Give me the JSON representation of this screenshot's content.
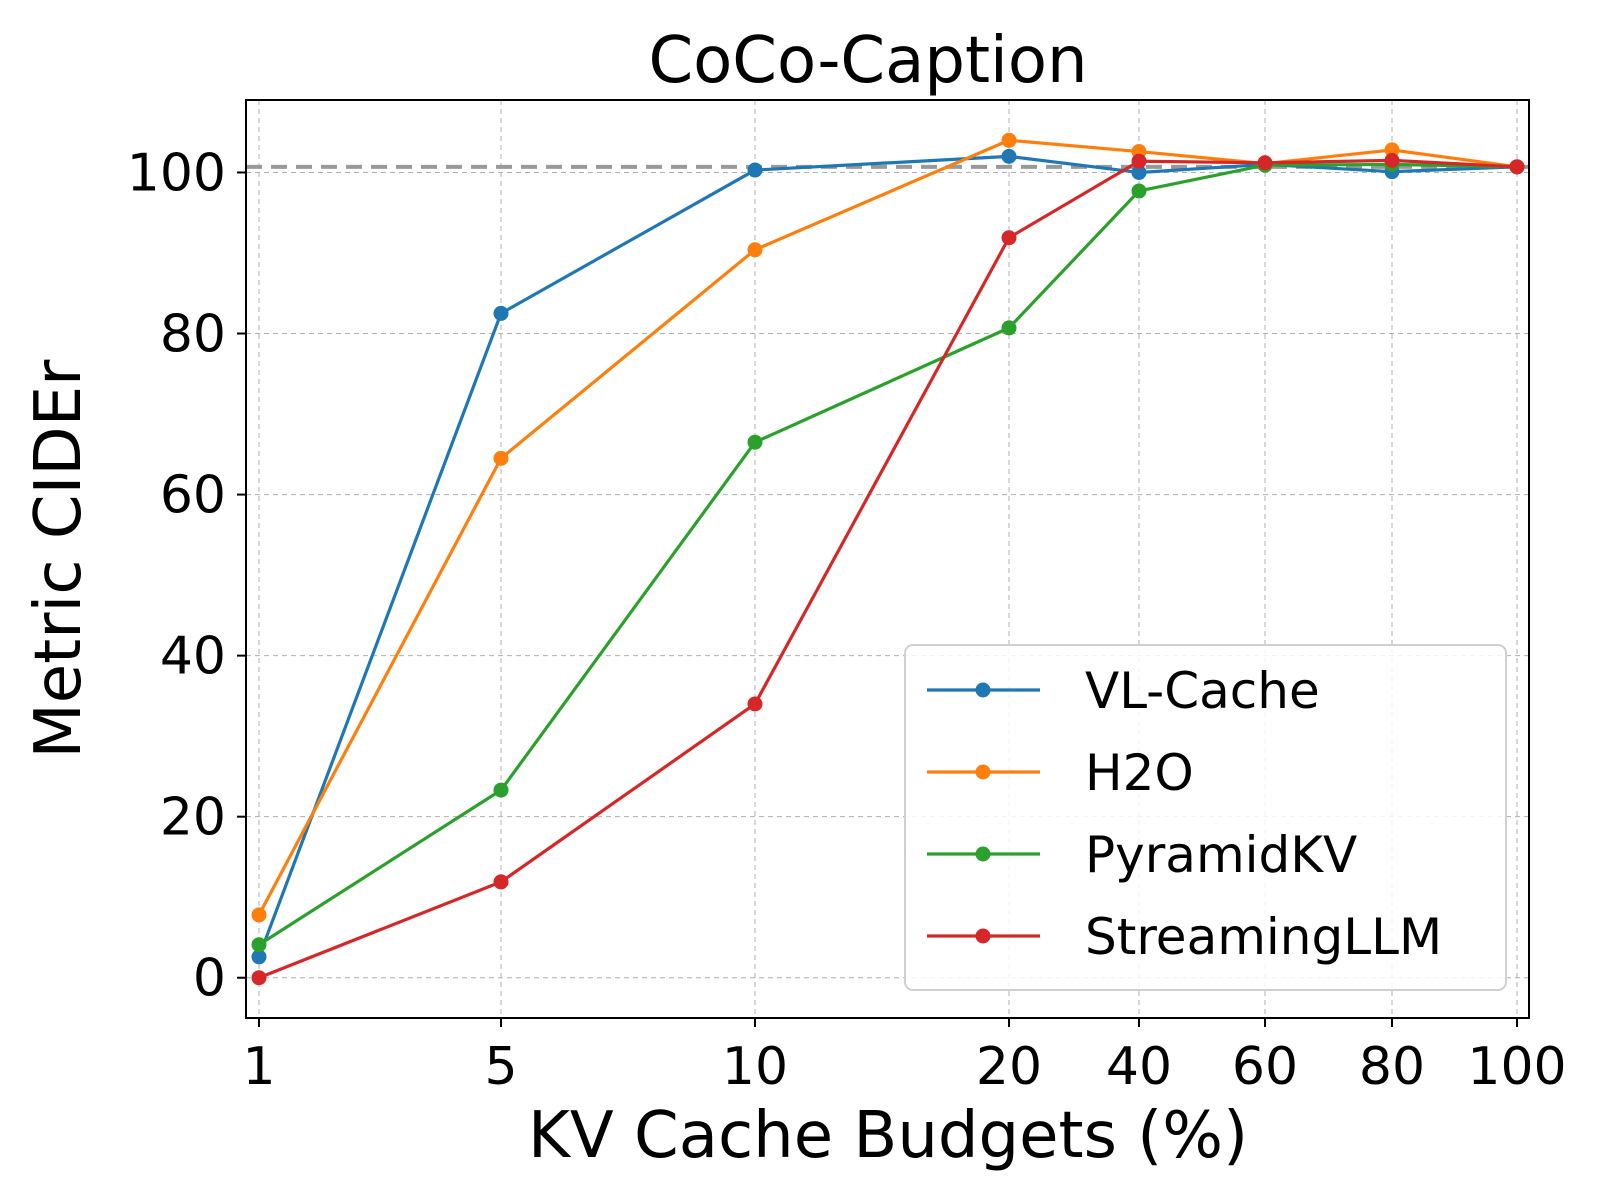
{
  "chart_data": {
    "type": "line",
    "title": "CoCo-Caption",
    "xlabel": "KV Cache Budgets (%)",
    "ylabel": "Metric CIDEr",
    "categories": [
      "1",
      "5",
      "10",
      "20",
      "40",
      "60",
      "80",
      "100"
    ],
    "ylim": [
      -5,
      109
    ],
    "yticks": [
      0,
      20,
      40,
      60,
      80,
      100
    ],
    "grid": true,
    "legend_position": "lower-right",
    "reference_line": {
      "value": 100.7,
      "style": "dashed",
      "color": "#999999"
    },
    "series": [
      {
        "name": "VL-Cache",
        "color": "#1f77b4",
        "values": [
          2.6,
          82.5,
          100.3,
          102.0,
          100.0,
          101.0,
          100.1,
          100.7
        ]
      },
      {
        "name": "H2O",
        "color": "#ff7f0e",
        "values": [
          7.8,
          64.5,
          90.4,
          104.0,
          102.6,
          101.1,
          102.8,
          100.7
        ]
      },
      {
        "name": "PyramidKV",
        "color": "#2ca02c",
        "values": [
          4.1,
          23.3,
          66.5,
          80.7,
          97.7,
          100.9,
          101.0,
          100.7
        ]
      },
      {
        "name": "StreamingLLM",
        "color": "#d62728",
        "values": [
          0.0,
          11.9,
          34.0,
          91.9,
          101.4,
          101.2,
          101.5,
          100.7
        ]
      }
    ]
  }
}
